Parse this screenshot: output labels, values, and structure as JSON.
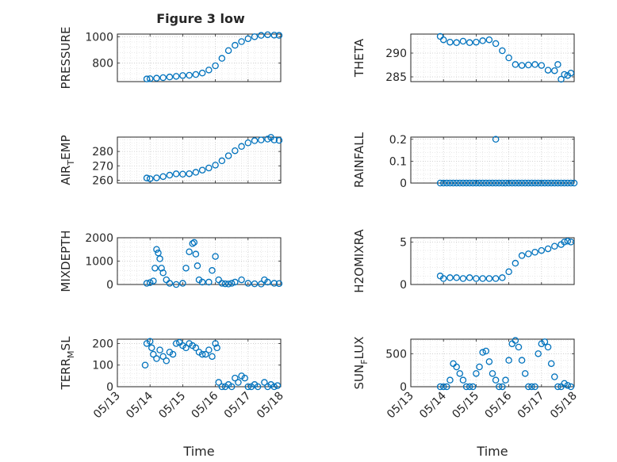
{
  "figure": {
    "title": "Figure 3 low",
    "marker_color": "#0072BD"
  },
  "chart_data": [
    {
      "type": "scatter",
      "ylabel": "PRESSURE",
      "ylabel_sub": "",
      "ylabel_tail": "",
      "xlabel": "",
      "xlim": [
        0,
        5
      ],
      "ylim": [
        660,
        1020
      ],
      "yticks": [
        800,
        1000
      ],
      "x_tick_labels": [
        "05/13",
        "05/14",
        "05/15",
        "05/16",
        "05/17",
        "05/18"
      ],
      "show_x_tick_labels": false,
      "grid": true,
      "x": [
        0.9,
        1.0,
        1.2,
        1.4,
        1.6,
        1.8,
        2.0,
        2.2,
        2.4,
        2.6,
        2.8,
        3.0,
        3.2,
        3.4,
        3.6,
        3.8,
        4.0,
        4.2,
        4.4,
        4.6,
        4.8,
        4.95
      ],
      "y": [
        680,
        682,
        686,
        690,
        695,
        700,
        706,
        708,
        714,
        725,
        748,
        780,
        836,
        895,
        935,
        963,
        985,
        1000,
        1010,
        1015,
        1012,
        1010
      ]
    },
    {
      "type": "scatter",
      "ylabel": "THETA",
      "ylabel_sub": "",
      "ylabel_tail": "",
      "xlabel": "",
      "xlim": [
        0,
        5
      ],
      "ylim": [
        284,
        294
      ],
      "yticks": [
        285,
        290
      ],
      "x_tick_labels": [
        "05/13",
        "05/14",
        "05/15",
        "05/16",
        "05/17",
        "05/18"
      ],
      "show_x_tick_labels": false,
      "grid": true,
      "x": [
        0.9,
        1.0,
        1.2,
        1.4,
        1.6,
        1.8,
        2.0,
        2.2,
        2.4,
        2.6,
        2.8,
        3.0,
        3.2,
        3.4,
        3.6,
        3.8,
        4.0,
        4.2,
        4.4,
        4.5,
        4.6,
        4.7,
        4.8,
        4.9
      ],
      "y": [
        293.5,
        292.8,
        292.3,
        292.2,
        292.5,
        292.2,
        292.3,
        292.6,
        292.8,
        292,
        290.5,
        289,
        287.6,
        287.4,
        287.5,
        287.6,
        287.4,
        286.4,
        286.3,
        287.6,
        284.5,
        285.5,
        285.3,
        285.8
      ]
    },
    {
      "type": "scatter",
      "ylabel": "AIR",
      "ylabel_sub": "T",
      "ylabel_tail": "EMP",
      "xlabel": "",
      "xlim": [
        0,
        5
      ],
      "ylim": [
        258,
        290
      ],
      "yticks": [
        260,
        270,
        280
      ],
      "x_tick_labels": [
        "05/13",
        "05/14",
        "05/15",
        "05/16",
        "05/17",
        "05/18"
      ],
      "show_x_tick_labels": false,
      "grid": true,
      "x": [
        0.9,
        1.0,
        1.2,
        1.4,
        1.6,
        1.8,
        2.0,
        2.2,
        2.4,
        2.6,
        2.8,
        3.0,
        3.2,
        3.4,
        3.6,
        3.8,
        4.0,
        4.2,
        4.4,
        4.6,
        4.7,
        4.8,
        4.95
      ],
      "y": [
        261.5,
        261,
        261.6,
        262.5,
        263.5,
        264.4,
        264.2,
        264.5,
        265.5,
        267,
        268.5,
        270.5,
        273.5,
        277,
        280.5,
        283.5,
        286,
        287.5,
        288,
        288.6,
        289.8,
        288,
        287.7
      ]
    },
    {
      "type": "scatter",
      "ylabel": "RAINFALL",
      "ylabel_sub": "",
      "ylabel_tail": "",
      "xlabel": "",
      "xlim": [
        0,
        5
      ],
      "ylim": [
        0,
        0.21
      ],
      "yticks": [
        0,
        0.1,
        0.2
      ],
      "x_tick_labels": [
        "05/13",
        "05/14",
        "05/15",
        "05/16",
        "05/17",
        "05/18"
      ],
      "show_x_tick_labels": false,
      "grid": true,
      "x": [
        0.9,
        1.0,
        1.1,
        1.2,
        1.3,
        1.4,
        1.5,
        1.6,
        1.7,
        1.8,
        1.9,
        2.0,
        2.1,
        2.2,
        2.3,
        2.4,
        2.5,
        2.6,
        2.7,
        2.8,
        2.9,
        3.0,
        3.1,
        3.2,
        3.3,
        3.4,
        3.5,
        3.6,
        3.7,
        3.8,
        3.9,
        4.0,
        4.1,
        4.2,
        4.3,
        4.4,
        4.5,
        4.6,
        4.7,
        4.8,
        4.9,
        5.0,
        2.6
      ],
      "y": [
        0,
        0,
        0,
        0,
        0,
        0,
        0,
        0,
        0,
        0,
        0,
        0,
        0,
        0,
        0,
        0,
        0,
        0,
        0,
        0,
        0,
        0,
        0,
        0,
        0,
        0,
        0,
        0,
        0,
        0,
        0,
        0,
        0,
        0,
        0,
        0,
        0,
        0,
        0,
        0,
        0,
        0,
        0.2
      ]
    },
    {
      "type": "scatter",
      "ylabel": "MIXDEPTH",
      "ylabel_sub": "",
      "ylabel_tail": "",
      "xlabel": "",
      "xlim": [
        0,
        5
      ],
      "ylim": [
        0,
        2000
      ],
      "yticks": [
        0,
        1000,
        2000
      ],
      "x_tick_labels": [
        "05/13",
        "05/14",
        "05/15",
        "05/16",
        "05/17",
        "05/18"
      ],
      "show_x_tick_labels": false,
      "grid": true,
      "x": [
        0.9,
        1.0,
        1.1,
        1.15,
        1.2,
        1.25,
        1.3,
        1.35,
        1.4,
        1.5,
        1.6,
        1.8,
        2.0,
        2.1,
        2.2,
        2.3,
        2.35,
        2.4,
        2.45,
        2.5,
        2.6,
        2.8,
        2.9,
        3.0,
        3.1,
        3.2,
        3.3,
        3.4,
        3.5,
        3.6,
        3.8,
        4.0,
        4.2,
        4.4,
        4.5,
        4.6,
        4.8,
        4.95
      ],
      "y": [
        50,
        80,
        150,
        700,
        1500,
        1350,
        1100,
        700,
        500,
        200,
        50,
        0,
        50,
        700,
        1400,
        1750,
        1800,
        1300,
        800,
        200,
        100,
        100,
        600,
        1200,
        200,
        50,
        30,
        20,
        50,
        100,
        200,
        50,
        30,
        20,
        200,
        100,
        50,
        40
      ]
    },
    {
      "type": "scatter",
      "ylabel": "H2OMIXRA",
      "ylabel_sub": "",
      "ylabel_tail": "",
      "xlabel": "",
      "xlim": [
        0,
        5
      ],
      "ylim": [
        0,
        5.5
      ],
      "yticks": [
        0,
        5
      ],
      "x_tick_labels": [
        "05/13",
        "05/14",
        "05/15",
        "05/16",
        "05/17",
        "05/18"
      ],
      "show_x_tick_labels": false,
      "grid": true,
      "x": [
        0.9,
        1.0,
        1.2,
        1.4,
        1.6,
        1.8,
        2.0,
        2.2,
        2.4,
        2.6,
        2.8,
        3.0,
        3.2,
        3.4,
        3.6,
        3.8,
        4.0,
        4.2,
        4.4,
        4.6,
        4.7,
        4.8,
        4.9
      ],
      "y": [
        1,
        0.7,
        0.8,
        0.8,
        0.7,
        0.8,
        0.7,
        0.7,
        0.7,
        0.7,
        0.8,
        1.5,
        2.5,
        3.4,
        3.6,
        3.8,
        4,
        4.2,
        4.5,
        4.7,
        5,
        5.1,
        5
      ]
    },
    {
      "type": "scatter",
      "ylabel": "TERR",
      "ylabel_sub": "M",
      "ylabel_tail": "SL",
      "xlabel": "Time",
      "xlim": [
        0,
        5
      ],
      "ylim": [
        0,
        220
      ],
      "yticks": [
        0,
        100,
        200
      ],
      "x_tick_labels": [
        "05/13",
        "05/14",
        "05/15",
        "05/16",
        "05/17",
        "05/18"
      ],
      "show_x_tick_labels": true,
      "grid": true,
      "x": [
        0.85,
        0.9,
        1.0,
        1.05,
        1.1,
        1.2,
        1.3,
        1.4,
        1.5,
        1.6,
        1.7,
        1.8,
        1.9,
        2.0,
        2.1,
        2.2,
        2.3,
        2.4,
        2.5,
        2.6,
        2.7,
        2.8,
        2.9,
        3.0,
        3.05,
        3.1,
        3.2,
        3.3,
        3.4,
        3.5,
        3.6,
        3.7,
        3.8,
        3.9,
        4.0,
        4.1,
        4.2,
        4.3,
        4.5,
        4.6,
        4.7,
        4.8,
        4.9
      ],
      "y": [
        100,
        200,
        210,
        180,
        150,
        130,
        170,
        140,
        120,
        160,
        150,
        200,
        205,
        190,
        180,
        200,
        190,
        180,
        160,
        150,
        150,
        170,
        140,
        200,
        180,
        20,
        0,
        0,
        10,
        0,
        40,
        20,
        50,
        40,
        0,
        0,
        10,
        0,
        20,
        0,
        10,
        0,
        5
      ]
    },
    {
      "type": "scatter",
      "ylabel": "SUN",
      "ylabel_sub": "F",
      "ylabel_tail": "LUX",
      "xlabel": "Time",
      "xlim": [
        0,
        5
      ],
      "ylim": [
        0,
        720
      ],
      "yticks": [
        0,
        500
      ],
      "x_tick_labels": [
        "05/13",
        "05/14",
        "05/15",
        "05/16",
        "05/17",
        "05/18"
      ],
      "show_x_tick_labels": true,
      "grid": true,
      "x": [
        0.9,
        1.0,
        1.1,
        1.2,
        1.3,
        1.4,
        1.5,
        1.6,
        1.7,
        1.8,
        1.9,
        2.0,
        2.1,
        2.2,
        2.3,
        2.4,
        2.5,
        2.6,
        2.7,
        2.8,
        2.9,
        3.0,
        3.1,
        3.2,
        3.3,
        3.4,
        3.5,
        3.6,
        3.7,
        3.8,
        3.9,
        4.0,
        4.1,
        4.2,
        4.3,
        4.4,
        4.5,
        4.6,
        4.7,
        4.8,
        4.9
      ],
      "y": [
        0,
        0,
        0,
        100,
        350,
        300,
        200,
        100,
        0,
        0,
        0,
        200,
        300,
        520,
        540,
        380,
        200,
        100,
        0,
        0,
        100,
        400,
        650,
        700,
        600,
        400,
        200,
        0,
        0,
        0,
        500,
        650,
        680,
        600,
        350,
        150,
        0,
        0,
        50,
        20,
        0
      ]
    }
  ]
}
